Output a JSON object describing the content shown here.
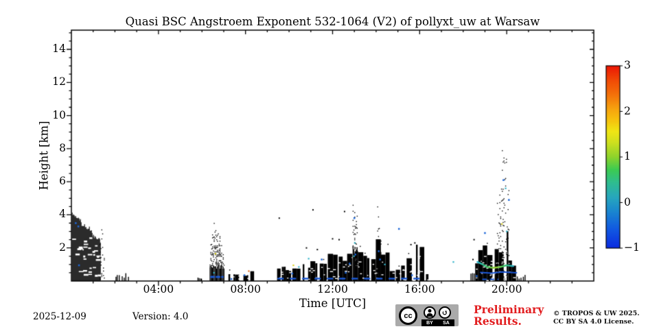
{
  "chart_data": {
    "type": "heatmap",
    "title": "Quasi BSC Angstroem Exponent 532-1064 (V2) of pollyxt_uw at Warsaw",
    "xlabel": "Time [UTC]",
    "ylabel": "Height [km]",
    "x_range_hours": [
      0,
      24
    ],
    "y_range_km": [
      0,
      15.16
    ],
    "x_major_ticks": [
      {
        "hour": 4,
        "label": "04:00"
      },
      {
        "hour": 8,
        "label": "08:00"
      },
      {
        "hour": 12,
        "label": "12:00"
      },
      {
        "hour": 16,
        "label": "16:00"
      },
      {
        "hour": 20,
        "label": "20:00"
      }
    ],
    "x_minor_step_hours": 1,
    "y_major_ticks": [
      {
        "km": 2,
        "label": "2"
      },
      {
        "km": 4,
        "label": "4"
      },
      {
        "km": 6,
        "label": "6"
      },
      {
        "km": 8,
        "label": "8"
      },
      {
        "km": 10,
        "label": "10"
      },
      {
        "km": 12,
        "label": "12"
      },
      {
        "km": 14,
        "label": "14"
      }
    ],
    "y_minor_step_km": 0.5,
    "point_color": "#000000",
    "colorbar": {
      "min": -1,
      "max": 3,
      "ticks": [
        {
          "value": 3,
          "label": "3"
        },
        {
          "value": 2,
          "label": "2"
        },
        {
          "value": 1,
          "label": "1"
        },
        {
          "value": 0,
          "label": "0"
        },
        {
          "value": -1,
          "label": "−1"
        }
      ],
      "stops": [
        [
          0,
          "#0b2be0"
        ],
        [
          0.1,
          "#1157e2"
        ],
        [
          0.2,
          "#1a86d0"
        ],
        [
          0.28,
          "#27a7bd"
        ],
        [
          0.36,
          "#2fbd8f"
        ],
        [
          0.43,
          "#3ccb52"
        ],
        [
          0.5,
          "#8ed32c"
        ],
        [
          0.58,
          "#cfe01f"
        ],
        [
          0.64,
          "#f0e615"
        ],
        [
          0.7,
          "#f6c30e"
        ],
        [
          0.76,
          "#f6a50f"
        ],
        [
          0.84,
          "#f4720a"
        ],
        [
          0.92,
          "#f14a06"
        ],
        [
          1,
          "#ed1505"
        ]
      ]
    },
    "regions": [
      {
        "name": "midnight-plume",
        "mode": "solid",
        "t": [
          0.02,
          1.32
        ],
        "profile": [
          [
            0.02,
            4.1
          ],
          [
            0.3,
            3.85
          ],
          [
            0.5,
            3.35
          ],
          [
            0.8,
            3.2
          ],
          [
            1.0,
            2.7
          ],
          [
            1.32,
            2.45
          ]
        ],
        "holes": 30
      },
      {
        "name": "midnight-fringe",
        "mode": "speckle-column",
        "t": [
          1.3,
          1.52
        ],
        "profile": [
          [
            1.3,
            3.6
          ],
          [
            1.52,
            2.2
          ]
        ],
        "solid_below": 0,
        "density": 0.14
      },
      {
        "name": "early-morning-ticks",
        "mode": "ticks",
        "t": [
          1.95,
          2.65
        ],
        "top": 0.55,
        "count": 7
      },
      {
        "name": "0545-ticks",
        "mode": "ticks",
        "t": [
          5.75,
          6.0
        ],
        "top": 0.3,
        "count": 4
      },
      {
        "name": "0630-column",
        "mode": "speckle-column",
        "t": [
          6.35,
          7.0
        ],
        "profile": [
          [
            6.35,
            2.0
          ],
          [
            6.55,
            3.6
          ],
          [
            6.75,
            3.1
          ],
          [
            7.0,
            1.3
          ]
        ],
        "solid_below": 0.85,
        "density": 0.42
      },
      {
        "name": "0700-0830-blocks",
        "mode": "blocks",
        "t": [
          7.0,
          8.35
        ],
        "profile": [
          [
            7.0,
            0.5
          ],
          [
            8.35,
            0.45
          ]
        ],
        "var": 0.35,
        "gap_prob": 0.4,
        "holes": 8
      },
      {
        "name": "midday-band",
        "mode": "blocks",
        "t": [
          9.45,
          16.35
        ],
        "profile": [
          [
            9.45,
            0.7
          ],
          [
            10.3,
            0.8
          ],
          [
            10.9,
            0.9
          ],
          [
            11.3,
            1.15
          ],
          [
            11.8,
            1.4
          ],
          [
            12.2,
            1.5
          ],
          [
            12.5,
            1.2
          ],
          [
            12.7,
            1.7
          ],
          [
            13.0,
            1.9
          ],
          [
            13.3,
            1.6
          ],
          [
            13.8,
            1.2
          ],
          [
            14.1,
            2.1
          ],
          [
            14.5,
            1.5
          ],
          [
            14.8,
            0.5
          ],
          [
            15.1,
            0.8
          ],
          [
            15.5,
            1.2
          ],
          [
            15.8,
            2.0
          ],
          [
            16.1,
            1.8
          ],
          [
            16.35,
            0.5
          ]
        ],
        "var": 0.22,
        "gap_prob": 0.12,
        "holes": 70
      },
      {
        "name": "1300-spike",
        "mode": "speckle-column",
        "t": [
          12.92,
          13.12
        ],
        "profile": [
          [
            12.92,
            4.7
          ],
          [
            13.12,
            4.0
          ]
        ],
        "solid_below": 1.85,
        "density": 0.3
      },
      {
        "name": "1410-spike",
        "mode": "speckle-column",
        "t": [
          14.05,
          14.22
        ],
        "profile": [
          [
            14.05,
            4.6
          ],
          [
            14.22,
            3.1
          ]
        ],
        "solid_below": 2.0,
        "density": 0.25
      },
      {
        "name": "evening-cluster",
        "mode": "blocks",
        "t": [
          18.55,
          20.35
        ],
        "profile": [
          [
            18.55,
            0.8
          ],
          [
            18.75,
            1.3
          ],
          [
            18.95,
            2.2
          ],
          [
            19.15,
            1.6
          ],
          [
            19.35,
            2.3
          ],
          [
            19.55,
            1.5
          ],
          [
            19.75,
            1.8
          ],
          [
            19.9,
            3.0
          ],
          [
            20.05,
            2.6
          ],
          [
            20.2,
            1.3
          ],
          [
            20.35,
            0.8
          ]
        ],
        "var": 0.3,
        "gap_prob": 0.1,
        "holes": 45
      },
      {
        "name": "evening-plume",
        "mode": "speckle-column",
        "t": [
          19.55,
          20.15
        ],
        "profile": [
          [
            19.55,
            5.0
          ],
          [
            19.8,
            8.3
          ],
          [
            20.0,
            7.2
          ],
          [
            20.15,
            4.5
          ]
        ],
        "solid_below": 0,
        "density": 0.09
      },
      {
        "name": "pre-evening-ticks",
        "mode": "ticks",
        "t": [
          18.3,
          18.5
        ],
        "top": 0.6,
        "count": 3
      },
      {
        "name": "evening-edge-ticks",
        "mode": "ticks",
        "t": [
          20.4,
          20.85
        ],
        "top": 0.4,
        "count": 5
      }
    ],
    "features": [
      {
        "type": "polyline",
        "name": "evening-cyan-green-line",
        "points": [
          [
            18.65,
            1.15
          ],
          [
            18.9,
            1.0
          ],
          [
            19.1,
            0.85
          ],
          [
            19.4,
            0.8
          ],
          [
            19.7,
            0.85
          ],
          [
            20.0,
            0.95
          ],
          [
            20.3,
            0.9
          ]
        ],
        "width": 2.5,
        "gradient": [
          "#25b2cf",
          "#38c46a",
          "#9ed32f",
          "#38c46a",
          "#28b0c8"
        ]
      },
      {
        "type": "polyline",
        "name": "evening-blue-line",
        "points": [
          [
            18.8,
            0.52
          ],
          [
            19.3,
            0.48
          ],
          [
            19.8,
            0.55
          ],
          [
            20.45,
            0.5
          ]
        ],
        "width": 2,
        "color": "#1a55d6"
      },
      {
        "type": "hdashes",
        "name": "midday-base-blue-streaks",
        "t": [
          9.5,
          16.3
        ],
        "h": 0.14,
        "color": "#1a58d4",
        "width": 2.5,
        "dash": [
          7,
          11
        ]
      },
      {
        "type": "hdashes",
        "name": "0630-base-blue",
        "t": [
          6.42,
          6.95
        ],
        "h": 0.25,
        "color": "#1a58d4",
        "width": 3,
        "dash": [
          4,
          4
        ]
      },
      {
        "type": "hdashes",
        "name": "evening-base-blue",
        "t": [
          18.9,
          19.6
        ],
        "h": 0.1,
        "color": "#1a58d4",
        "width": 2,
        "dash": [
          5,
          6
        ]
      },
      {
        "type": "dots",
        "name": "blue-specks",
        "color": "#1c66d8",
        "size": 2.5,
        "points": [
          [
            0.2,
            3.5
          ],
          [
            0.32,
            3.3
          ],
          [
            0.35,
            0.95
          ],
          [
            7.35,
            0.12
          ],
          [
            7.95,
            0.35
          ],
          [
            10.15,
            0.45
          ],
          [
            11.5,
            1.3
          ],
          [
            12.6,
            0.5
          ],
          [
            12.78,
            1.05
          ],
          [
            13.0,
            3.8
          ],
          [
            13.05,
            1.6
          ],
          [
            14.12,
            1.8
          ],
          [
            14.18,
            1.3
          ],
          [
            15.05,
            3.15
          ],
          [
            15.65,
            0.35
          ],
          [
            18.62,
            0.3
          ],
          [
            19.0,
            2.9
          ],
          [
            19.85,
            6.1
          ],
          [
            20.1,
            4.9
          ]
        ]
      },
      {
        "type": "dots",
        "name": "cyan-specks",
        "color": "#2fb3c9",
        "size": 2.2,
        "points": [
          [
            6.55,
            0.5
          ],
          [
            10.45,
            0.85
          ],
          [
            10.9,
            1.35
          ],
          [
            12.98,
            1.5
          ],
          [
            13.02,
            2.3
          ],
          [
            14.4,
            1.0
          ],
          [
            17.55,
            1.15
          ],
          [
            19.95,
            5.6
          ],
          [
            20.0,
            3.0
          ]
        ]
      },
      {
        "type": "dots",
        "name": "warm-specks",
        "color": "#e06414",
        "size": 2.2,
        "points": [
          [
            8.15,
            0.6
          ]
        ]
      },
      {
        "type": "dots",
        "name": "yellow-specks",
        "color": "#d9cf1e",
        "size": 2.2,
        "points": [
          [
            6.62,
            1.65
          ],
          [
            10.2,
            0.95
          ],
          [
            19.78,
            3.45
          ]
        ]
      },
      {
        "type": "dots",
        "name": "black-stray-specks",
        "color": "#000000",
        "size": 2,
        "points": [
          [
            9.55,
            3.8
          ],
          [
            10.8,
            2.0
          ],
          [
            11.1,
            4.3
          ],
          [
            11.3,
            1.9
          ],
          [
            12.0,
            2.55
          ],
          [
            12.3,
            2.5
          ],
          [
            12.55,
            4.2
          ],
          [
            15.6,
            2.2
          ],
          [
            15.78,
            2.3
          ],
          [
            18.45,
            1.3
          ],
          [
            18.5,
            2.5
          ]
        ]
      }
    ]
  },
  "footer": {
    "date": "2025-12-09",
    "version": "Version: 4.0",
    "preliminary": "Preliminary Results.",
    "copyright_line1": "© TROPOS & UW 2025.",
    "copyright_line2": "CC BY SA 4.0 License.",
    "badge": {
      "cc": "cc",
      "by": "BY",
      "sa": "SA",
      "sa_icon": "↺"
    }
  }
}
